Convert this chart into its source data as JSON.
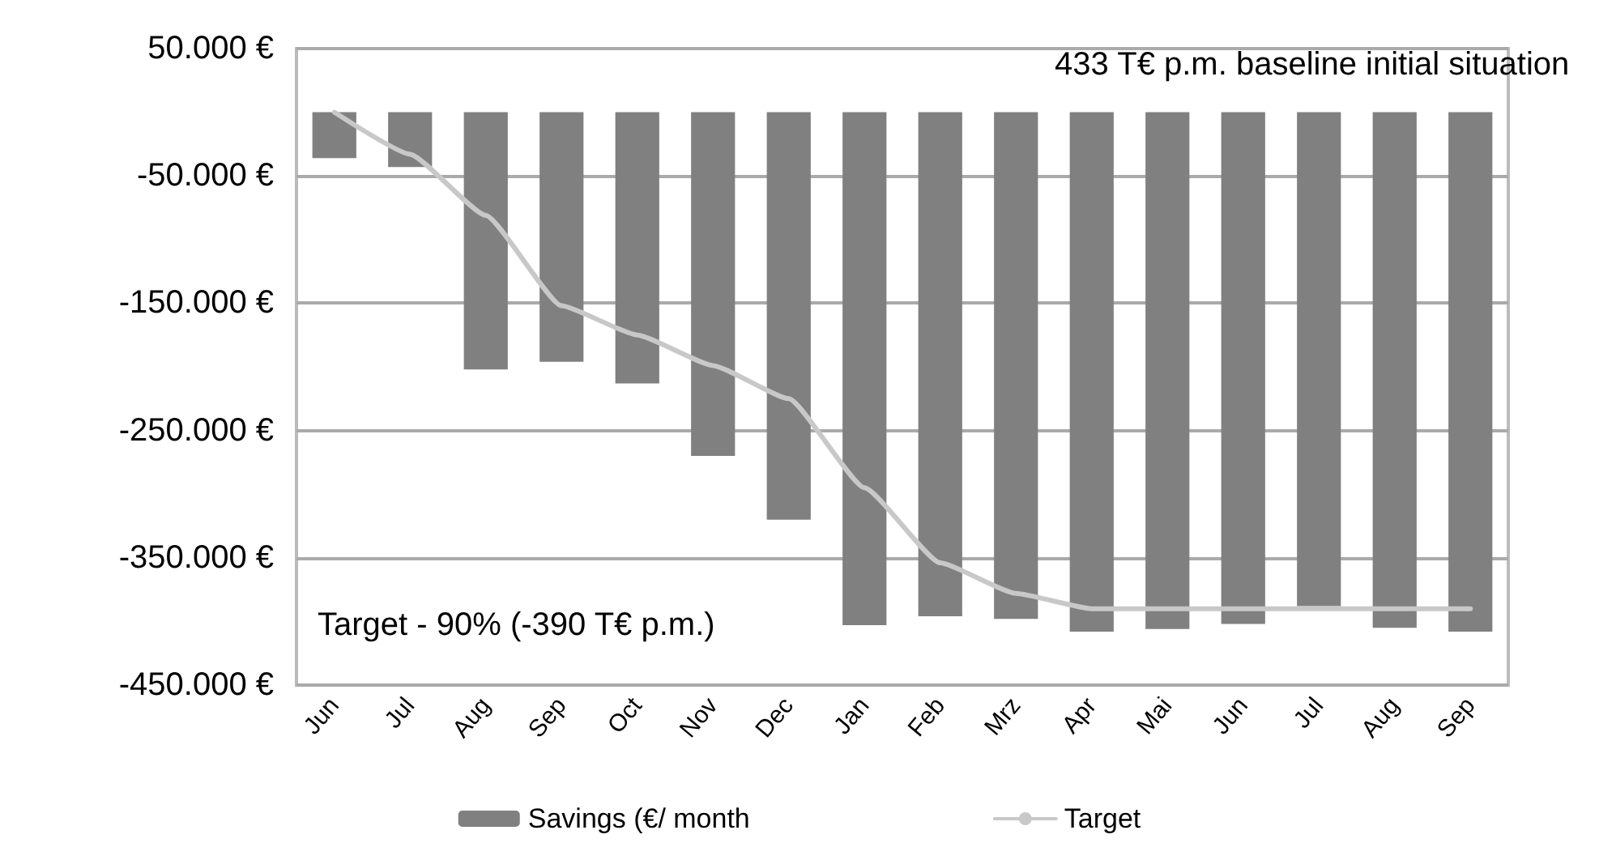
{
  "chart_data": {
    "type": "bar",
    "categories": [
      "Jun",
      "Jul",
      "Aug",
      "Sep",
      "Oct",
      "Nov",
      "Dec",
      "Jan",
      "Feb",
      "Mrz",
      "Apr",
      "Mai",
      "Jun",
      "Jul",
      "Aug",
      "Sep"
    ],
    "series": [
      {
        "name": "Savings (€/ month",
        "color": "#808080",
        "values": [
          -36000,
          -43000,
          -202000,
          -196000,
          -213000,
          -270000,
          -320000,
          -403000,
          -396000,
          -398000,
          -408000,
          -406000,
          -402000,
          -388000,
          -405000,
          -408000
        ]
      },
      {
        "name": "Target",
        "type": "line",
        "color": "#c8c8c8",
        "values": [
          0,
          -33000,
          -81000,
          -152000,
          -175000,
          -199000,
          -225000,
          -295000,
          -354000,
          -378000,
          -390000,
          -390000,
          -390000,
          -390000,
          -390000,
          -390000
        ]
      }
    ],
    "ylim": [
      -450000,
      50000
    ],
    "yticks": [
      {
        "value": 50000,
        "label": "50.000 €"
      },
      {
        "value": -50000,
        "label": "-50.000 €"
      },
      {
        "value": -150000,
        "label": "-150.000 €"
      },
      {
        "value": -250000,
        "label": "-250.000 €"
      },
      {
        "value": -350000,
        "label": "-350.000 €"
      },
      {
        "value": -450000,
        "label": "-450.000 €"
      }
    ],
    "grid": "y",
    "legend": "bottom",
    "marker": "none",
    "annotations": [
      "433 T€ p.m. baseline initial situation",
      "Target - 90% (-390 T€ p.m.)"
    ]
  }
}
